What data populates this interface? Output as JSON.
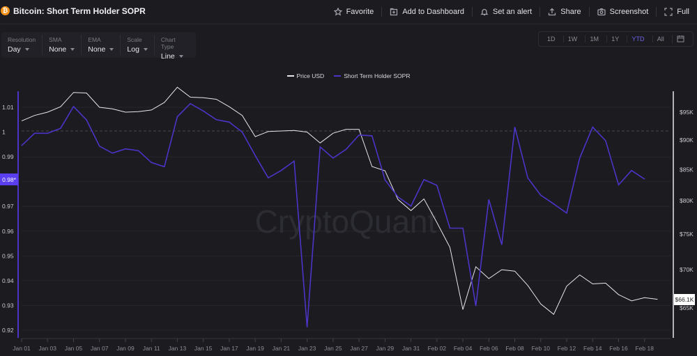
{
  "header": {
    "coin_icon": "bitcoin-icon",
    "title": "Bitcoin: Short Term Holder SOPR",
    "actions": [
      {
        "label": "Favorite",
        "icon": "star-icon"
      },
      {
        "label": "Add to Dashboard",
        "icon": "add-to-dashboard-icon"
      },
      {
        "label": "Set an alert",
        "icon": "bell-icon"
      },
      {
        "label": "Share",
        "icon": "share-icon"
      },
      {
        "label": "Screenshot",
        "icon": "camera-icon"
      },
      {
        "label": "Full",
        "icon": "fullscreen-icon"
      }
    ]
  },
  "controls": [
    {
      "label": "Resolution",
      "value": "Day"
    },
    {
      "label": "SMA",
      "value": "None"
    },
    {
      "label": "EMA",
      "value": "None"
    },
    {
      "label": "Scale",
      "value": "Log"
    },
    {
      "label": "Chart Type",
      "value": "Line"
    }
  ],
  "ranges": {
    "options": [
      "1D",
      "1W",
      "1M",
      "1Y",
      "YTD",
      "All"
    ],
    "active": "YTD",
    "calendar_icon": "calendar-icon"
  },
  "legend": [
    {
      "label": "Price USD",
      "color": "#e8e8ec"
    },
    {
      "label": "Short Term Holder SOPR",
      "color": "#4a35c8"
    }
  ],
  "watermark": "CryptoQuant",
  "left_axis_badge": "0.98*",
  "price_tag": "$66.1K",
  "colors": {
    "background": "#1b1b20",
    "sopr": "#4a35c8",
    "price": "#e8e8ec",
    "accent": "#6b63e8",
    "badge": "#5a3ff0"
  },
  "chart_data": {
    "type": "line",
    "title": "Bitcoin: Short Term Holder SOPR",
    "x_tick_labels": [
      "Jan 01",
      "Jan 03",
      "Jan 05",
      "Jan 07",
      "Jan 09",
      "Jan 11",
      "Jan 13",
      "Jan 15",
      "Jan 17",
      "Jan 19",
      "Jan 21",
      "Jan 23",
      "Jan 25",
      "Jan 27",
      "Jan 29",
      "Jan 31",
      "Feb 02",
      "Feb 04",
      "Feb 06",
      "Feb 08",
      "Feb 10",
      "Feb 12",
      "Feb 14",
      "Feb 16",
      "Feb 18"
    ],
    "left_axis": {
      "label": "Short Term Holder SOPR",
      "ticks": [
        1.01,
        1,
        0.99,
        0.98,
        0.97,
        0.96,
        0.95,
        0.94,
        0.93,
        0.92
      ],
      "ylim": [
        0.918,
        1.014
      ],
      "reference_line": 1
    },
    "right_axis": {
      "label": "Price USD",
      "ticks": [
        "$95K",
        "$90K",
        "$85K",
        "$80K",
        "$75K",
        "$70K",
        "$65K"
      ],
      "ylim": [
        62000,
        99000
      ],
      "scale": "log"
    },
    "series": [
      {
        "name": "Short Term Holder SOPR",
        "axis": "left",
        "color": "#4a35c8",
        "values": [
          0.9945,
          0.9995,
          0.9995,
          1.0015,
          1.0103,
          1.0049,
          0.9943,
          0.9915,
          0.9932,
          0.9925,
          0.9877,
          0.986,
          1.0062,
          1.0115,
          1.0085,
          1.005,
          1.004,
          1.0,
          0.9905,
          0.9815,
          0.9845,
          0.9883,
          0.9212,
          0.994,
          0.9895,
          0.993,
          0.9988,
          0.9985,
          0.9807,
          0.9738,
          0.9701,
          0.9808,
          0.9785,
          0.9612,
          0.9612,
          0.9298,
          0.9728,
          0.9545,
          1.002,
          0.9815,
          0.9745,
          0.971,
          0.9673,
          0.9895,
          1.002,
          0.9965,
          0.9787,
          0.9845,
          0.981,
          null
        ]
      },
      {
        "name": "Price USD",
        "axis": "right",
        "color": "#e8e8ec",
        "values": [
          93400,
          94400,
          95000,
          96000,
          98700,
          98600,
          95900,
          95600,
          95000,
          95100,
          95400,
          96800,
          99700,
          97800,
          97700,
          97400,
          96000,
          94400,
          90600,
          91500,
          91600,
          91700,
          91400,
          89500,
          91200,
          91900,
          91900,
          85500,
          84800,
          80200,
          78500,
          80300,
          76700,
          73100,
          64800,
          70400,
          68800,
          70000,
          69800,
          67900,
          65500,
          64200,
          67800,
          69300,
          68100,
          68200,
          66700,
          65900,
          66300,
          66100
        ]
      }
    ]
  }
}
